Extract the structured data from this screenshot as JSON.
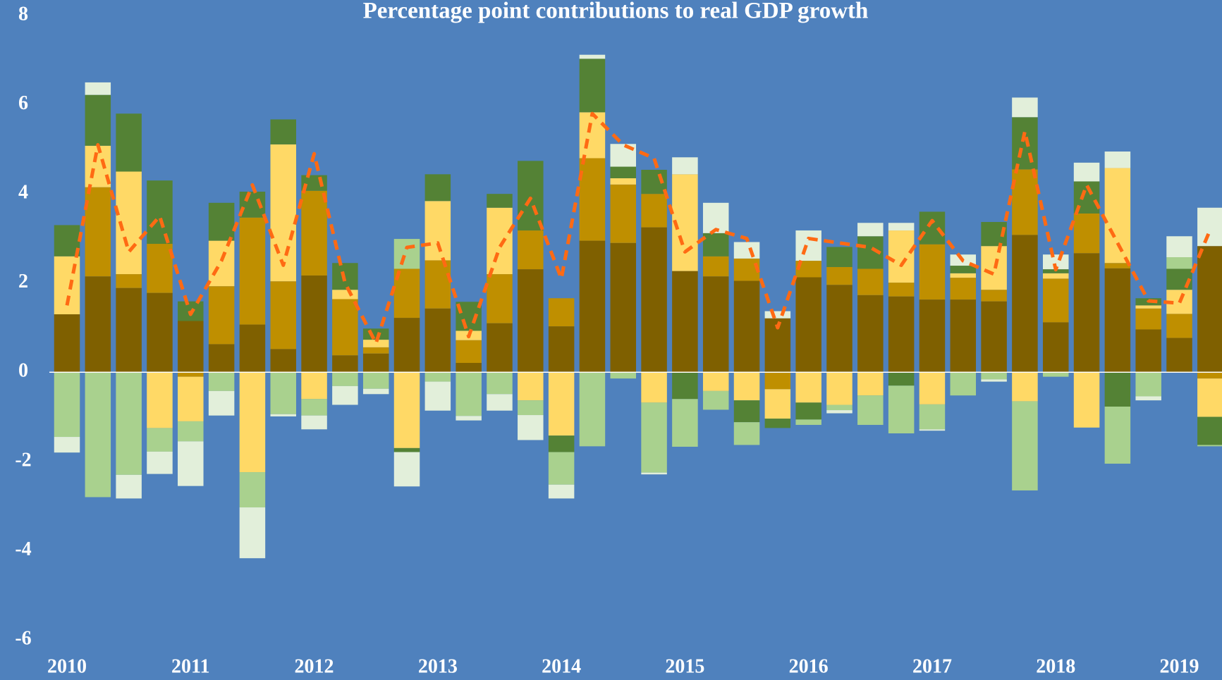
{
  "chart_data": {
    "type": "bar",
    "title": "Percentage point contributions to real GDP growth",
    "categories": [
      "2010",
      null,
      null,
      null,
      "2011",
      null,
      null,
      null,
      "2012",
      null,
      null,
      null,
      "2013",
      null,
      null,
      null,
      "2014",
      null,
      null,
      null,
      "2015",
      null,
      null,
      null,
      "2016",
      null,
      null,
      null,
      "2017",
      null,
      null,
      null,
      "2018",
      null,
      null,
      null,
      "2019",
      null
    ],
    "series": [
      {
        "color": "#7f6000",
        "values": [
          1.3,
          2.15,
          1.89,
          1.78,
          1.15,
          0.63,
          1.07,
          0.52,
          2.17,
          0.38,
          0.42,
          1.22,
          1.43,
          0.21,
          1.1,
          2.31,
          1.03,
          2.95,
          2.9,
          3.25,
          2.27,
          2.15,
          2.05,
          1.21,
          2.13,
          1.96,
          1.73,
          1.7,
          1.63,
          1.63,
          1.59,
          3.08,
          1.12,
          2.67,
          2.33,
          0.96,
          0.77,
          2.83
        ]
      },
      {
        "color": "#bf8f00",
        "values": [
          0,
          2.0,
          0.31,
          1.1,
          -0.1,
          1.3,
          2.4,
          1.52,
          1.9,
          1.26,
          0.14,
          1.1,
          1.08,
          0.51,
          1.1,
          0.87,
          0.63,
          1.85,
          1.31,
          0.75,
          0,
          0.45,
          0.5,
          -0.38,
          0.37,
          0.4,
          0.59,
          0.31,
          1.24,
          0.49,
          0.26,
          1.47,
          0.98,
          0.89,
          0.12,
          0.47,
          0.54,
          -0.14
        ]
      },
      {
        "color": "#ffd966",
        "values": [
          1.3,
          0.93,
          2.3,
          -1.25,
          -1.0,
          1.02,
          -2.24,
          3.07,
          -0.6,
          0.21,
          0.17,
          -1.7,
          1.33,
          0.21,
          1.49,
          -0.63,
          -1.42,
          1.03,
          0.14,
          -0.68,
          2.17,
          -0.42,
          -0.63,
          -0.66,
          -0.68,
          -0.73,
          -0.52,
          1.17,
          -0.72,
          0.1,
          0.98,
          -0.65,
          0.12,
          -1.24,
          2.13,
          0.07,
          0.54,
          -0.86
        ]
      },
      {
        "color": "#548235",
        "values": [
          0.7,
          1.14,
          1.3,
          1.42,
          0.44,
          0.85,
          0.58,
          0.56,
          0.35,
          0.6,
          0.25,
          -0.09,
          0.6,
          0.65,
          0.31,
          1.56,
          -0.37,
          1.2,
          0.26,
          0.54,
          -0.6,
          0.52,
          -0.49,
          -0.21,
          -0.38,
          0.45,
          0.73,
          -0.3,
          0.73,
          0.17,
          0.54,
          1.17,
          0.09,
          0.72,
          -0.77,
          0.16,
          0.47,
          -0.63
        ]
      },
      {
        "color": "#a9d18e",
        "values": [
          -1.45,
          -2.8,
          -2.3,
          -0.53,
          -0.45,
          -0.42,
          -0.79,
          -0.94,
          -0.37,
          -0.31,
          -0.37,
          0.67,
          -0.21,
          -0.98,
          -0.49,
          -0.33,
          -0.73,
          -1.66,
          -0.14,
          -1.57,
          -1.07,
          -0.42,
          -0.51,
          0,
          -0.12,
          -0.12,
          -0.66,
          -1.07,
          -0.56,
          -0.52,
          -0.16,
          -2.0,
          -0.1,
          0,
          -1.28,
          -0.54,
          0.26,
          -0.03
        ]
      },
      {
        "color": "#e2efda",
        "values": [
          -0.35,
          0.28,
          -0.53,
          -0.5,
          -1.0,
          -0.55,
          -1.14,
          -0.05,
          -0.31,
          -0.42,
          -0.12,
          -0.77,
          -0.65,
          -0.1,
          -0.37,
          -0.56,
          -0.31,
          0.09,
          0.51,
          -0.04,
          0.38,
          0.68,
          0.37,
          0.16,
          0.68,
          -0.07,
          0.3,
          0.17,
          -0.03,
          0.25,
          -0.05,
          0.44,
          0.33,
          0.42,
          0.37,
          -0.09,
          0.47,
          0.86
        ]
      },
      {
        "type": "line",
        "color": "#ff6a13",
        "values": [
          1.5,
          5.1,
          2.7,
          3.5,
          1.3,
          2.5,
          4.2,
          2.4,
          4.9,
          2.0,
          0.65,
          2.8,
          2.9,
          0.8,
          2.8,
          3.9,
          2.1,
          5.8,
          5.1,
          4.8,
          2.7,
          3.2,
          3.0,
          1.0,
          3.0,
          2.9,
          2.8,
          2.4,
          3.4,
          2.5,
          2.2,
          5.4,
          2.3,
          4.2,
          2.9,
          1.6,
          1.55,
          3.2
        ]
      }
    ],
    "ylim": [
      -6,
      8
    ],
    "yticks": [
      -6,
      -4,
      -2,
      0,
      2,
      4,
      6,
      8
    ],
    "grid": false,
    "background": "#4f81bd"
  }
}
